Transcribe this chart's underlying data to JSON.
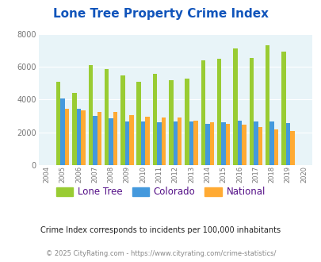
{
  "title": "Lone Tree Property Crime Index",
  "years": [
    2004,
    2005,
    2006,
    2007,
    2008,
    2009,
    2010,
    2011,
    2012,
    2013,
    2014,
    2015,
    2016,
    2017,
    2018,
    2019,
    2020
  ],
  "lone_tree": [
    null,
    5100,
    4400,
    6100,
    5850,
    5450,
    5100,
    5550,
    5200,
    5300,
    6400,
    6500,
    7100,
    6550,
    7300,
    6950,
    null
  ],
  "colorado": [
    null,
    4050,
    3450,
    3000,
    2850,
    2650,
    2650,
    2600,
    2650,
    2650,
    2500,
    2600,
    2700,
    2650,
    2650,
    2550,
    null
  ],
  "national": [
    null,
    3450,
    3350,
    3250,
    3250,
    3050,
    2950,
    2900,
    2900,
    2700,
    2600,
    2500,
    2450,
    2300,
    2200,
    2100,
    null
  ],
  "lone_tree_color": "#99cc33",
  "colorado_color": "#4499dd",
  "national_color": "#ffaa33",
  "bg_color": "#e8f4f8",
  "title_color": "#1155bb",
  "subtitle": "Crime Index corresponds to incidents per 100,000 inhabitants",
  "footer": "© 2025 CityRating.com - https://www.cityrating.com/crime-statistics/",
  "ylim": [
    0,
    8000
  ],
  "yticks": [
    0,
    2000,
    4000,
    6000,
    8000
  ],
  "bar_width": 0.27,
  "legend_labels": [
    "Lone Tree",
    "Colorado",
    "National"
  ],
  "legend_text_color": "#551188"
}
